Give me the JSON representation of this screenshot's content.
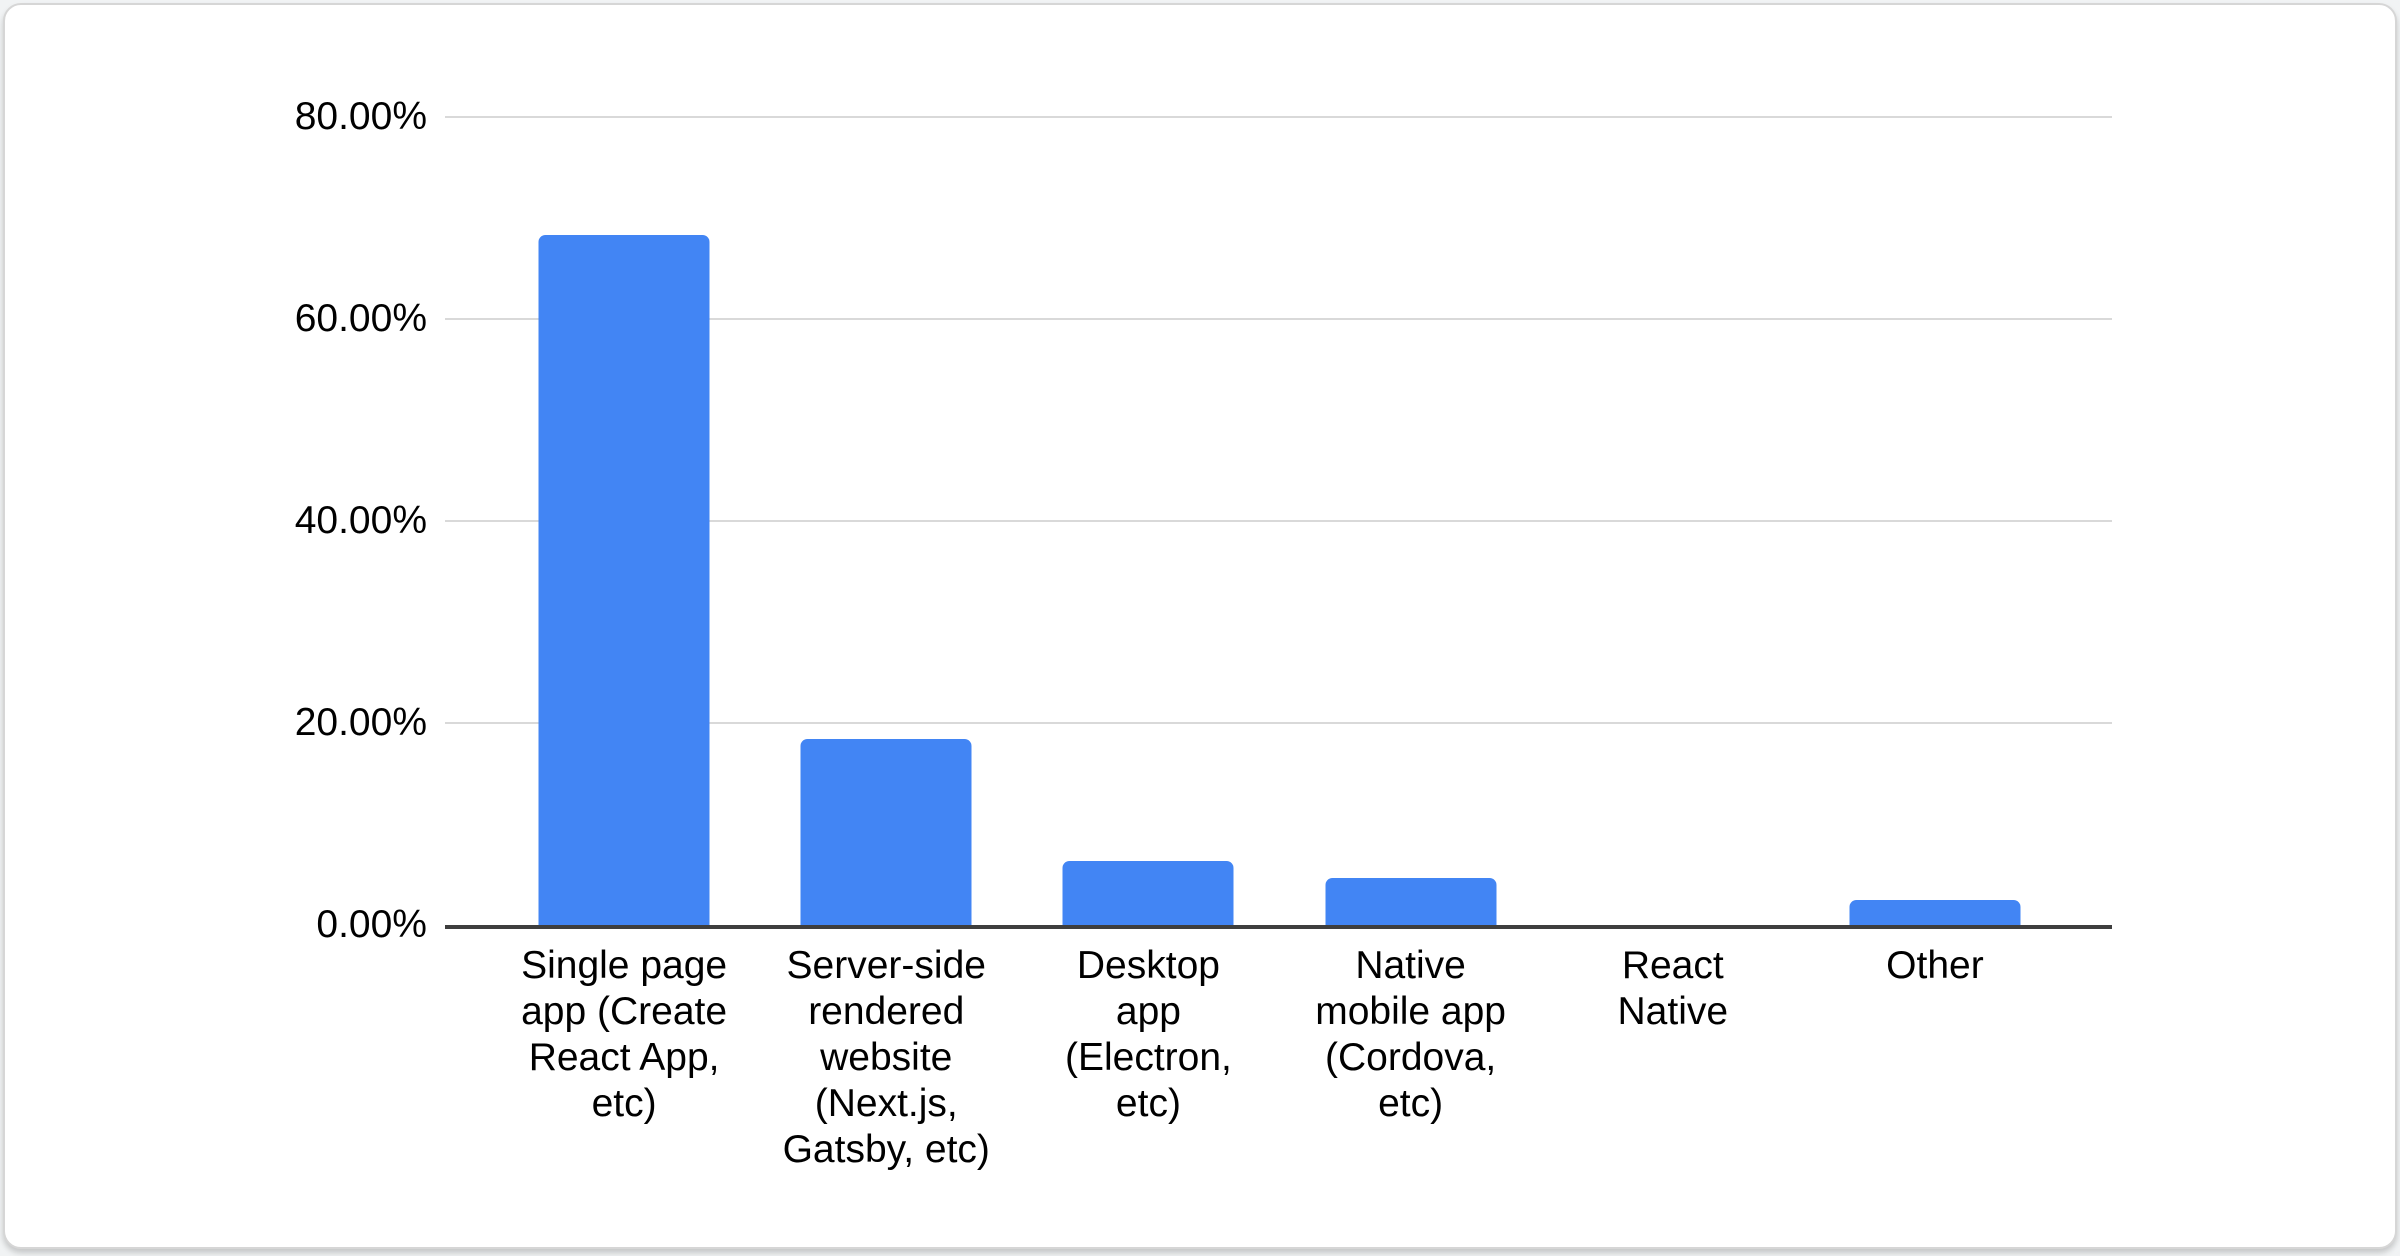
{
  "chart_data": {
    "type": "bar",
    "title": "",
    "xlabel": "",
    "ylabel": "",
    "legend": "none",
    "grid": true,
    "ylim": [
      0,
      80
    ],
    "y_ticks": [
      {
        "label": "80.00%",
        "value": 80
      },
      {
        "label": "60.00%",
        "value": 60
      },
      {
        "label": "40.00%",
        "value": 40
      },
      {
        "label": "20.00%",
        "value": 20
      },
      {
        "label": "0.00%",
        "value": 0
      }
    ],
    "categories": [
      "Single page app (Create React App, etc)",
      "Server-side rendered website (Next.js, Gatsby, etc)",
      "Desktop app (Electron, etc)",
      "Native mobile app (Cordova, etc)",
      "React Native",
      "Other"
    ],
    "category_lines": [
      [
        "Single page",
        "app (Create",
        "React App,",
        "etc)"
      ],
      [
        "Server-side",
        "rendered",
        "website",
        "(Next.js,",
        "Gatsby, etc)"
      ],
      [
        "Desktop",
        "app",
        "(Electron,",
        "etc)"
      ],
      [
        "Native",
        "mobile app",
        "(Cordova,",
        "etc)"
      ],
      [
        "React",
        "Native"
      ],
      [
        "Other"
      ]
    ],
    "values": [
      68.3,
      18.4,
      6.3,
      4.7,
      0,
      2.5
    ],
    "unit": "%",
    "colors": {
      "bar": "#4285f4",
      "gridline": "#d9d9d9",
      "axis_line": "#3e3e3e",
      "text": "#000000",
      "card_background": "#ffffff",
      "card_border": "#d6d6d6"
    }
  }
}
